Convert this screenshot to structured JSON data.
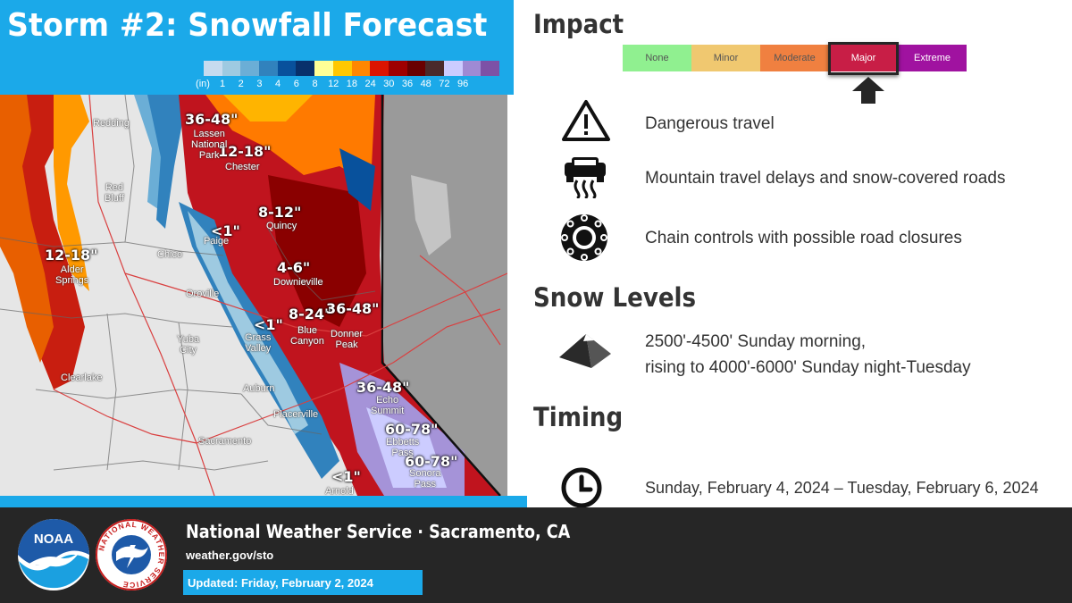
{
  "header": {
    "title": "Storm #2: Snowfall Forecast"
  },
  "legend": {
    "unit_label": "(in)",
    "ticks": [
      "1",
      "2",
      "3",
      "4",
      "6",
      "8",
      "12",
      "18",
      "24",
      "30",
      "36",
      "48",
      "72",
      "96"
    ],
    "colors": [
      "#c6dbef",
      "#9ecae1",
      "#6baed6",
      "#3182bd",
      "#08519c",
      "#08306b",
      "#ffff96",
      "#ffc800",
      "#ff8700",
      "#db1400",
      "#9e0000",
      "#690000",
      "#4a2a2a",
      "#ccccff",
      "#9f8ad4",
      "#7d51a6"
    ]
  },
  "map": {
    "ranges": [
      {
        "text": "36-48\""
      },
      {
        "text": "12-18\""
      },
      {
        "text": "8-12\""
      },
      {
        "text": "<1\""
      },
      {
        "text": "12-18\""
      },
      {
        "text": "4-6\""
      },
      {
        "text": "8-24\""
      },
      {
        "text": "36-48\""
      },
      {
        "text": "<1\""
      },
      {
        "text": "36-48\""
      },
      {
        "text": "60-78\""
      },
      {
        "text": "60-78\""
      },
      {
        "text": "<1\""
      }
    ],
    "cities": [
      {
        "text": "Redding"
      },
      {
        "text": "Lassen\nNational\nPark"
      },
      {
        "text": "Chester"
      },
      {
        "text": "Red\nBluff"
      },
      {
        "text": "Quincy"
      },
      {
        "text": "Paige"
      },
      {
        "text": "Chico"
      },
      {
        "text": "Alder\nSprings"
      },
      {
        "text": "Oroville"
      },
      {
        "text": "Downieville"
      },
      {
        "text": "Blue\nCanyon"
      },
      {
        "text": "Donner\nPeak"
      },
      {
        "text": "Grass\nValley"
      },
      {
        "text": "Yuba\nCity"
      },
      {
        "text": "Clearlake"
      },
      {
        "text": "Auburn"
      },
      {
        "text": "Echo\nSummit"
      },
      {
        "text": "Placerville"
      },
      {
        "text": "Ebbetts\nPass"
      },
      {
        "text": "Sacramento"
      },
      {
        "text": "Sonora\nPass"
      },
      {
        "text": "Arnold"
      }
    ]
  },
  "impact": {
    "title": "Impact",
    "levels": [
      {
        "label": "None",
        "color": "#90f090",
        "text_color": "#555555"
      },
      {
        "label": "Minor",
        "color": "#f0c870",
        "text_color": "#555555"
      },
      {
        "label": "Moderate",
        "color": "#f08040",
        "text_color": "#555555"
      },
      {
        "label": "Major",
        "color": "#c81e46",
        "text_color": "#ffffff"
      },
      {
        "label": "Extreme",
        "color": "#a012a0",
        "text_color": "#ffffff"
      }
    ],
    "selected": "Major",
    "items": [
      {
        "icon": "warning-triangle-icon",
        "text": "Dangerous travel"
      },
      {
        "icon": "car-sliding-icon",
        "text": "Mountain travel delays and snow-covered roads"
      },
      {
        "icon": "tire-chain-icon",
        "text": "Chain controls with possible road closures"
      }
    ]
  },
  "snow_levels": {
    "title": "Snow Levels",
    "line1": "2500'-4500' Sunday morning,",
    "line2": "rising to 4000'-6000' Sunday night-Tuesday",
    "icon": "mountain-pyramid-icon"
  },
  "timing": {
    "title": "Timing",
    "text": "Sunday, February 4, 2024 – Tuesday, February 6, 2024",
    "icon": "clock-icon"
  },
  "footer": {
    "office": "National Weather Service · Sacramento, CA",
    "url": "weather.gov/sto",
    "updated": "Updated: Friday, February 2, 2024",
    "logo1": "noaa-logo",
    "logo2": "nws-logo",
    "nws_ring_text": "NATIONAL WEATHER SERVICE"
  }
}
